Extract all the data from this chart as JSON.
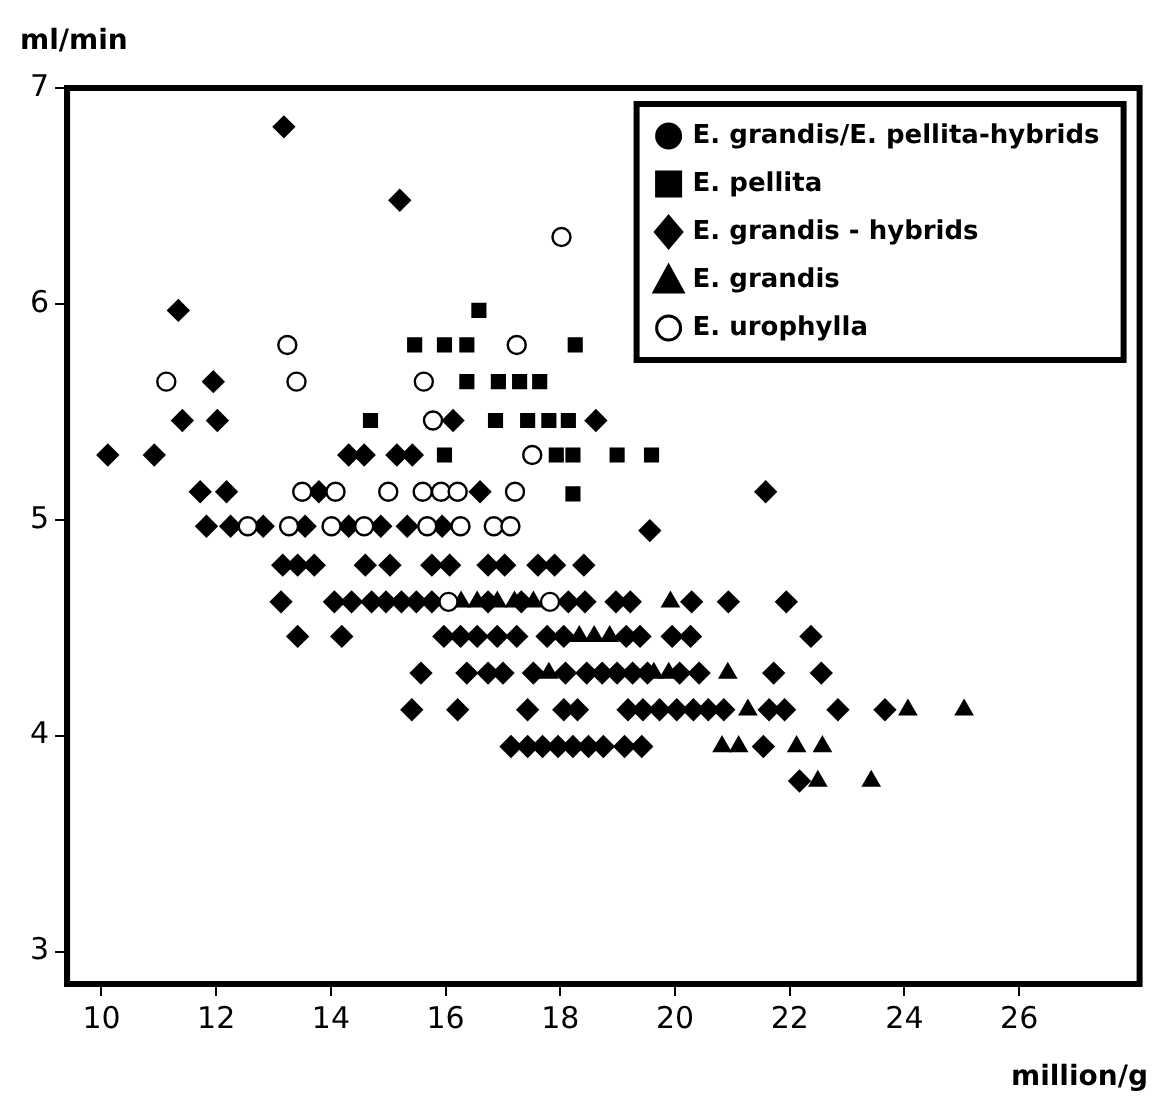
{
  "chart_data": {
    "type": "scatter",
    "xlabel": "million/g",
    "ylabel": "ml/min",
    "xlim": [
      9.4,
      28.1
    ],
    "ylim": [
      2.85,
      7
    ],
    "xticks": [
      10,
      12,
      14,
      16,
      18,
      20,
      22,
      24,
      26
    ],
    "yticks": [
      3,
      4,
      5,
      6,
      7
    ],
    "grid": false,
    "legend": "top right",
    "series": [
      {
        "name": "E. grandis/E. pellita-hybrids",
        "color": "#000000",
        "marker": "circle"
      },
      {
        "name": "E. pellita",
        "color": "#000000",
        "marker": "square",
        "x": [
          16.58,
          15.46,
          15.98,
          16.37,
          18.26,
          16.37,
          16.92,
          17.29,
          17.64,
          14.69,
          16.87,
          17.43,
          17.8,
          18.14,
          15.98,
          17.93,
          18.22,
          18.99,
          19.59,
          18.22
        ],
        "values": [
          5.97,
          5.81,
          5.81,
          5.81,
          5.81,
          5.64,
          5.64,
          5.64,
          5.64,
          5.46,
          5.46,
          5.46,
          5.46,
          5.46,
          5.3,
          5.3,
          5.3,
          5.3,
          5.3,
          5.12
        ]
      },
      {
        "name": "E. grandis - hybrids",
        "color": "#000000",
        "marker": "diamond",
        "x": [
          13.18,
          15.2,
          11.34,
          11.95,
          11.41,
          12.02,
          16.13,
          18.62,
          10.11,
          10.92,
          14.31,
          14.58,
          15.15,
          15.42,
          11.72,
          12.18,
          13.79,
          16.6,
          21.58,
          11.83,
          12.25,
          12.82,
          13.55,
          14.31,
          14.87,
          15.33,
          15.94,
          19.56,
          13.16,
          13.42,
          13.71,
          14.6,
          15.03,
          15.76,
          16.07,
          16.74,
          17.03,
          17.61,
          17.9,
          18.41,
          13.13,
          14.06,
          14.36,
          14.71,
          14.96,
          15.23,
          15.49,
          15.76,
          16.74,
          17.32,
          18.14,
          18.43,
          18.97,
          19.22,
          20.29,
          20.93,
          21.94,
          13.42,
          14.19,
          15.97,
          16.26,
          16.55,
          16.9,
          17.24,
          17.77,
          18.06,
          19.15,
          19.39,
          19.95,
          20.27,
          22.37,
          15.57,
          16.37,
          16.74,
          17.0,
          17.53,
          18.09,
          18.46,
          18.73,
          18.99,
          19.26,
          19.52,
          20.08,
          20.42,
          21.72,
          22.55,
          15.41,
          16.21,
          17.43,
          18.06,
          18.3,
          19.18,
          19.44,
          19.73,
          20.03,
          20.32,
          20.58,
          20.85,
          21.64,
          21.91,
          22.84,
          23.66,
          17.14,
          17.43,
          17.69,
          17.96,
          18.22,
          18.49,
          18.75,
          19.12,
          19.42,
          21.54,
          22.17
        ],
        "values": [
          6.82,
          6.48,
          5.97,
          5.64,
          5.46,
          5.46,
          5.46,
          5.46,
          5.3,
          5.3,
          5.3,
          5.3,
          5.3,
          5.3,
          5.13,
          5.13,
          5.13,
          5.13,
          5.13,
          4.97,
          4.97,
          4.97,
          4.97,
          4.97,
          4.97,
          4.97,
          4.97,
          4.95,
          4.79,
          4.79,
          4.79,
          4.79,
          4.79,
          4.79,
          4.79,
          4.79,
          4.79,
          4.79,
          4.79,
          4.79,
          4.62,
          4.62,
          4.62,
          4.62,
          4.62,
          4.62,
          4.62,
          4.62,
          4.62,
          4.62,
          4.62,
          4.62,
          4.62,
          4.62,
          4.62,
          4.62,
          4.62,
          4.46,
          4.46,
          4.46,
          4.46,
          4.46,
          4.46,
          4.46,
          4.46,
          4.46,
          4.46,
          4.46,
          4.46,
          4.46,
          4.46,
          4.29,
          4.29,
          4.29,
          4.29,
          4.29,
          4.29,
          4.29,
          4.29,
          4.29,
          4.29,
          4.29,
          4.29,
          4.29,
          4.29,
          4.29,
          4.12,
          4.12,
          4.12,
          4.12,
          4.12,
          4.12,
          4.12,
          4.12,
          4.12,
          4.12,
          4.12,
          4.12,
          4.12,
          4.12,
          4.12,
          4.12,
          3.95,
          3.95,
          3.95,
          3.95,
          3.95,
          3.95,
          3.95,
          3.95,
          3.95,
          3.95,
          3.79
        ]
      },
      {
        "name": "E. grandis",
        "color": "#000000",
        "marker": "triangle",
        "x": [
          16.27,
          16.55,
          16.9,
          17.2,
          17.53,
          19.92,
          18.33,
          18.59,
          18.86,
          17.8,
          19.63,
          19.89,
          20.92,
          21.27,
          24.06,
          25.04,
          20.82,
          21.11,
          22.12,
          22.57,
          22.49,
          23.42
        ],
        "values": [
          4.62,
          4.62,
          4.62,
          4.62,
          4.62,
          4.62,
          4.46,
          4.46,
          4.46,
          4.29,
          4.29,
          4.29,
          4.29,
          4.12,
          4.12,
          4.12,
          3.95,
          3.95,
          3.95,
          3.95,
          3.79,
          3.79
        ]
      },
      {
        "name": "E. urophylla",
        "color": "#ffffff",
        "marker": "circle",
        "x": [
          18.02,
          13.24,
          17.24,
          11.13,
          13.4,
          15.62,
          15.78,
          17.51,
          13.5,
          14.08,
          15.0,
          15.6,
          15.92,
          16.21,
          17.21,
          12.55,
          13.27,
          14.01,
          14.58,
          15.68,
          16.26,
          16.84,
          17.13,
          16.05,
          17.82
        ],
        "values": [
          6.31,
          5.81,
          5.81,
          5.64,
          5.64,
          5.64,
          5.46,
          5.3,
          5.13,
          5.13,
          5.13,
          5.13,
          5.13,
          5.13,
          5.13,
          4.97,
          4.97,
          4.97,
          4.97,
          4.97,
          4.97,
          4.97,
          4.97,
          4.62,
          4.62
        ]
      }
    ]
  }
}
